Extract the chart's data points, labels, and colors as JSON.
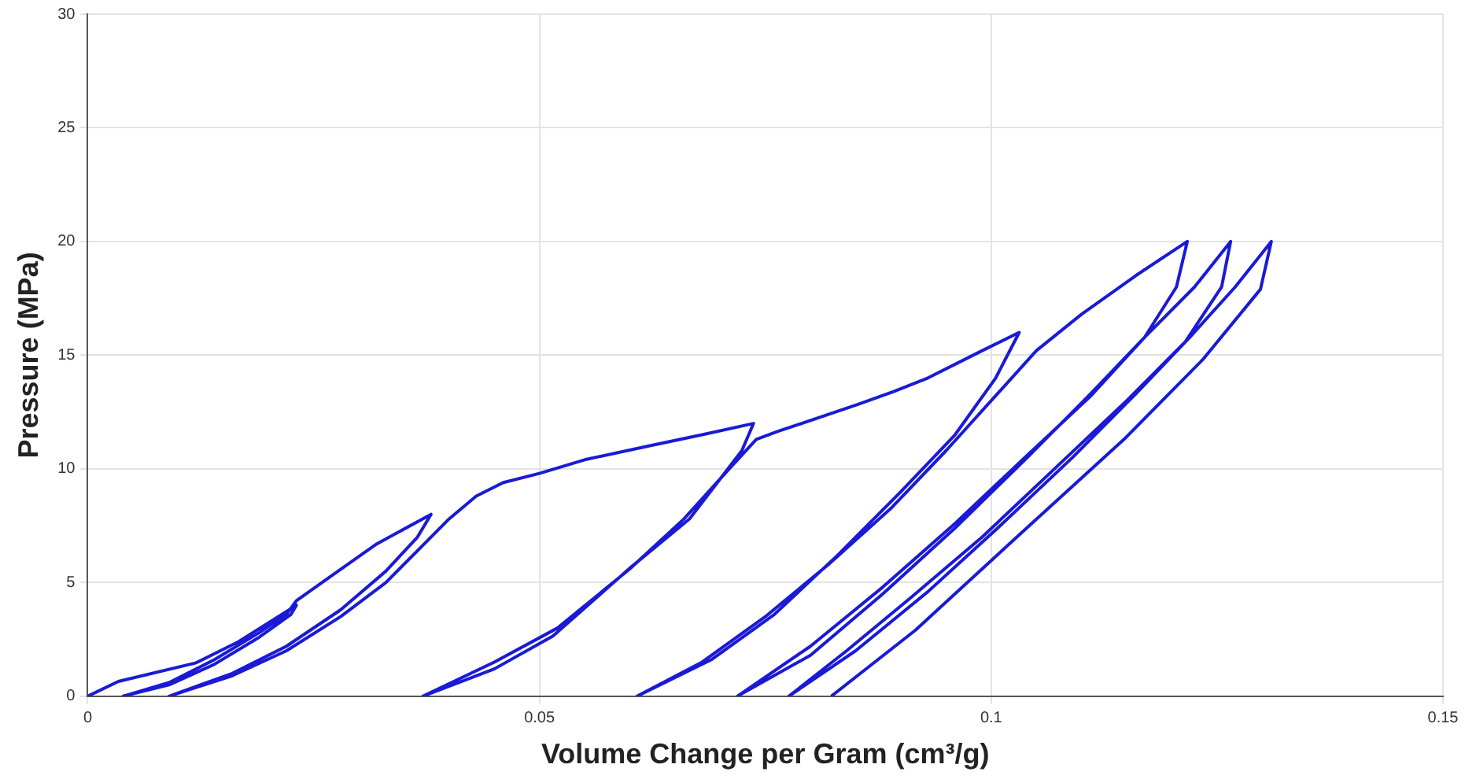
{
  "chart_data": {
    "type": "line",
    "xlabel": "Volume Change per Gram (cm³/g)",
    "ylabel": "Pressure (MPa)",
    "series": [
      {
        "color": "#1a1ad6",
        "x": [
          0,
          0.0034,
          0.012,
          0.0167,
          0.0231,
          0.0225,
          0.019,
          0.014,
          0.009,
          0.0039,
          0.009,
          0.014,
          0.019,
          0.022,
          0.0231,
          0.027,
          0.032,
          0.038,
          0.0365,
          0.033,
          0.028,
          0.022,
          0.016,
          0.009,
          0.016,
          0.022,
          0.028,
          0.033,
          0.037,
          0.04,
          0.043,
          0.046,
          0.05,
          0.055,
          0.062,
          0.068,
          0.0737,
          0.0724,
          0.0666,
          0.0602,
          0.0515,
          0.045,
          0.0371,
          0.045,
          0.052,
          0.06,
          0.066,
          0.071,
          0.074,
          0.0764,
          0.085,
          0.0892,
          0.093,
          0.099,
          0.1031,
          0.1005,
          0.096,
          0.09,
          0.083,
          0.076,
          0.069,
          0.0608,
          0.068,
          0.075,
          0.082,
          0.089,
          0.095,
          0.1,
          0.105,
          0.11,
          0.116,
          0.1217,
          0.1205,
          0.117,
          0.111,
          0.104,
          0.096,
          0.088,
          0.08,
          0.0719,
          0.08,
          0.088,
          0.096,
          0.104,
          0.111,
          0.117,
          0.1225,
          0.1265,
          0.1255,
          0.1215,
          0.115,
          0.107,
          0.099,
          0.091,
          0.084,
          0.0776,
          0.085,
          0.093,
          0.101,
          0.109,
          0.116,
          0.122,
          0.127,
          0.131,
          0.1298,
          0.1234,
          0.1147,
          0.1031,
          0.0916,
          0.0823
        ],
        "values": [
          0,
          0.65,
          1.47,
          2.4,
          4,
          3.6,
          2.6,
          1.4,
          0.5,
          0,
          0.6,
          1.6,
          2.8,
          3.6,
          4.2,
          5.3,
          6.7,
          8,
          7,
          5.5,
          3.8,
          2.2,
          1,
          0,
          0.9,
          2,
          3.5,
          5,
          6.6,
          7.8,
          8.8,
          9.4,
          9.8,
          10.4,
          11,
          11.5,
          12,
          10.8,
          7.8,
          5.7,
          2.65,
          1.2,
          0,
          1.5,
          3,
          5.6,
          7.8,
          10,
          11.3,
          11.65,
          12.8,
          13.4,
          14,
          15.2,
          16,
          14,
          11.5,
          9,
          6.2,
          3.6,
          1.6,
          0,
          1.5,
          3.5,
          5.8,
          8.3,
          10.8,
          13,
          15.2,
          16.8,
          18.5,
          20,
          18,
          15.8,
          13.2,
          10.6,
          7.6,
          4.8,
          2.2,
          0,
          1.8,
          4.5,
          7.4,
          10.5,
          13.3,
          15.8,
          18,
          20,
          18,
          15.6,
          13,
          10,
          7,
          4.3,
          2,
          0,
          2,
          4.6,
          7.5,
          10.5,
          13.3,
          15.8,
          18,
          20,
          17.9,
          14.8,
          11.3,
          7.1,
          2.9,
          0
        ]
      }
    ],
    "xlim": [
      0,
      0.15
    ],
    "xticks": [
      0,
      0.05,
      0.1,
      0.15
    ],
    "ylim": [
      0,
      30
    ],
    "yticks": [
      0,
      5,
      10,
      15,
      20,
      25,
      30
    ],
    "grid": true,
    "legend": false,
    "marker": "none",
    "line_style": "solid"
  }
}
